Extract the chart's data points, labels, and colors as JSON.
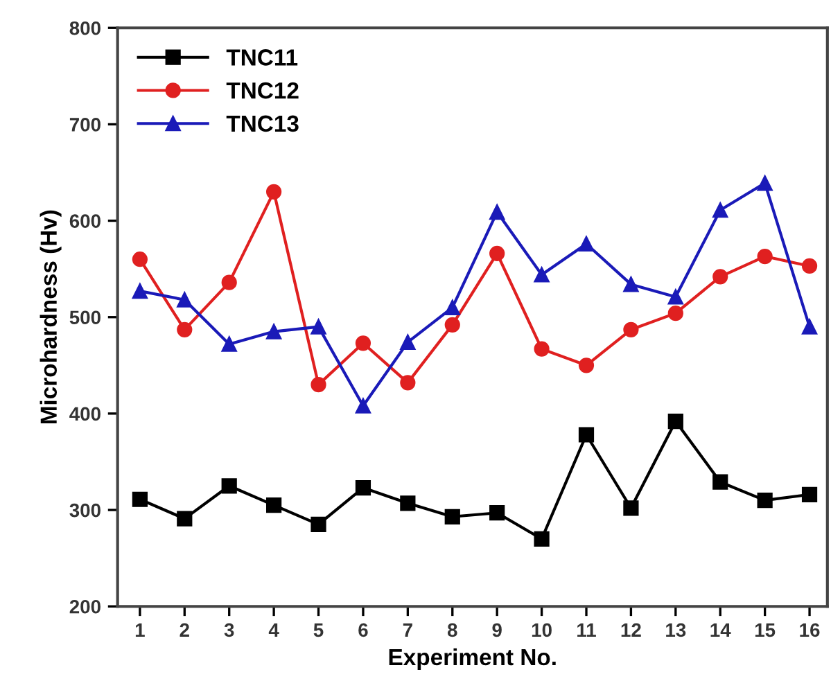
{
  "chart_data": {
    "type": "line",
    "xlabel": "Experiment No.",
    "ylabel": "Microhardness (Hv)",
    "x": [
      1,
      2,
      3,
      4,
      5,
      6,
      7,
      8,
      9,
      10,
      11,
      12,
      13,
      14,
      15,
      16
    ],
    "xlim": [
      0.5,
      16.4
    ],
    "xticks": [
      1,
      2,
      3,
      4,
      5,
      6,
      7,
      8,
      9,
      10,
      11,
      12,
      13,
      14,
      15,
      16
    ],
    "ylim": [
      200,
      800
    ],
    "yticks": [
      200,
      300,
      400,
      500,
      600,
      700,
      800
    ],
    "grid": false,
    "legend": "top left",
    "line_style": "solid",
    "series": [
      {
        "name": "TNC11",
        "color": "#000000",
        "marker": "square",
        "values": [
          311,
          291,
          325,
          305,
          285,
          323,
          307,
          293,
          297,
          270,
          378,
          302,
          392,
          329,
          310,
          316
        ]
      },
      {
        "name": "TNC12",
        "color": "#e02020",
        "marker": "circle",
        "values": [
          560,
          487,
          536,
          630,
          430,
          473,
          432,
          492,
          566,
          467,
          450,
          487,
          504,
          542,
          563,
          553
        ]
      },
      {
        "name": "TNC13",
        "color": "#1a1ab8",
        "marker": "triangle",
        "values": [
          527,
          518,
          472,
          485,
          490,
          408,
          474,
          510,
          609,
          544,
          576,
          534,
          521,
          611,
          639,
          490
        ]
      }
    ]
  }
}
